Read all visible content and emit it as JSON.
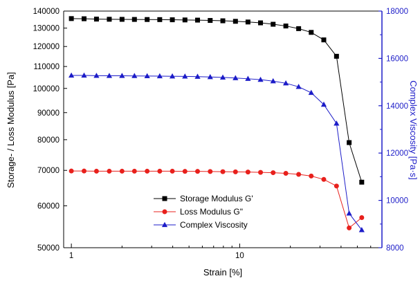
{
  "chart_data": {
    "type": "line",
    "title": "",
    "xlabel": "Strain [%]",
    "ylabel": "Storage- / Loss Modulus [Pa]",
    "ylabel_right": "Complex Viscosity [Pa·s]",
    "x_scale": "log",
    "y_scale": "log",
    "xlim": [
      0.9,
      70
    ],
    "ylim": [
      50000,
      140000
    ],
    "ylim_right": [
      8000,
      18000
    ],
    "x_ticks": [
      1,
      10
    ],
    "x_tick_labels": [
      "1",
      "10"
    ],
    "y_ticks": [
      140000,
      130000,
      120000,
      110000,
      100000,
      90000,
      80000,
      70000,
      60000,
      50000
    ],
    "y_tick_labels": [
      "140000",
      "130000",
      "120000",
      "110000",
      "100000",
      "90000",
      "80000",
      "70000",
      "60000",
      "50000"
    ],
    "y_right_ticks": [
      8000,
      10000,
      12000,
      14000,
      16000,
      18000
    ],
    "y_right_tick_labels": [
      "8000",
      "10000",
      "12000",
      "14000",
      "16000",
      "18000"
    ],
    "grid": false,
    "legend_position": "bottom-left",
    "x": [
      1.0,
      1.19,
      1.41,
      1.68,
      2.0,
      2.37,
      2.82,
      3.35,
      3.98,
      4.73,
      5.62,
      6.68,
      7.94,
      9.44,
      11.2,
      13.3,
      15.8,
      18.8,
      22.4,
      26.6,
      31.6,
      37.6,
      44.7,
      53.1,
      63.1
    ],
    "series": [
      {
        "name": "Storage Modulus G'",
        "axis": "left",
        "color": "#000000",
        "marker": "square",
        "values": [
          135500,
          135400,
          135200,
          135100,
          135050,
          135000,
          134950,
          134900,
          134800,
          134700,
          134600,
          134400,
          134200,
          133900,
          133500,
          133000,
          132200,
          131200,
          129700,
          127600,
          123500,
          115000,
          79000,
          66500,
          null
        ]
      },
      {
        "name": "Loss Modulus G\"",
        "axis": "left",
        "color": "#e8201c",
        "marker": "circle",
        "values": [
          69800,
          69800,
          69750,
          69750,
          69750,
          69750,
          69750,
          69750,
          69750,
          69700,
          69700,
          69650,
          69600,
          69550,
          69500,
          69400,
          69300,
          69100,
          68800,
          68300,
          67300,
          65400,
          54500,
          57000,
          null
        ]
      },
      {
        "name": "Complex Viscosity",
        "axis": "right",
        "color": "#1c1cc8",
        "marker": "triangle",
        "values": [
          15280,
          15280,
          15270,
          15265,
          15265,
          15260,
          15255,
          15250,
          15245,
          15240,
          15230,
          15215,
          15195,
          15170,
          15140,
          15100,
          15040,
          14950,
          14800,
          14550,
          14050,
          13250,
          9450,
          8750,
          null
        ]
      }
    ]
  }
}
